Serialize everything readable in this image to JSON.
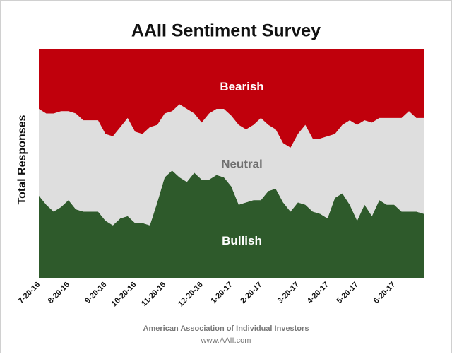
{
  "chart_data": {
    "type": "stacked_area",
    "title": "AAII Sentiment Survey",
    "ylabel": "Total Responses",
    "footer": [
      "American Association of Individual Investors",
      "www.AAII.com"
    ],
    "categories": [
      "7-20-16",
      null,
      null,
      null,
      "8-20-16",
      null,
      null,
      null,
      null,
      "9-20-16",
      null,
      null,
      null,
      "10-20-16",
      null,
      null,
      null,
      "11-20-16",
      null,
      null,
      null,
      null,
      "12-20-16",
      null,
      null,
      null,
      "1-20-17",
      null,
      null,
      null,
      "2-20-17",
      null,
      null,
      null,
      null,
      "3-20-17",
      null,
      null,
      null,
      "4-20-17",
      null,
      null,
      null,
      "5-20-17",
      null,
      null,
      null,
      null,
      "6-20-17",
      null,
      null,
      null,
      null
    ],
    "ylim": [
      0,
      100
    ],
    "series": [
      {
        "name": "Bullish",
        "color": "#2e5a2b",
        "label_color": "#ffffff",
        "values": [
          36,
          32,
          29,
          31,
          34,
          30,
          29,
          29,
          29,
          25,
          23,
          26,
          27,
          24,
          24,
          23,
          33,
          44,
          47,
          44,
          42,
          46,
          43,
          43,
          45,
          44,
          40,
          32,
          33,
          34,
          34,
          38,
          39,
          33,
          29,
          33,
          32,
          29,
          28,
          26,
          35,
          37,
          32,
          25,
          32,
          27,
          34,
          32,
          32,
          29,
          29,
          29,
          28
        ]
      },
      {
        "name": "Neutral",
        "color": "#dedede",
        "label_color": "#707070",
        "values": [
          38,
          40,
          43,
          42,
          39,
          42,
          40,
          40,
          40,
          38,
          39,
          40,
          43,
          40,
          39,
          43,
          34,
          28,
          26,
          32,
          32,
          26,
          25,
          29,
          29,
          30,
          31,
          35,
          32,
          33,
          36,
          29,
          26,
          26,
          28,
          30,
          35,
          32,
          33,
          36,
          28,
          30,
          37,
          42,
          37,
          41,
          36,
          38,
          38,
          41,
          44,
          41,
          42
        ]
      },
      {
        "name": "Bearish",
        "color": "#c0000c",
        "label_color": "#ffffff",
        "values": [
          26,
          28,
          28,
          27,
          27,
          28,
          31,
          31,
          31,
          37,
          38,
          34,
          30,
          36,
          37,
          34,
          33,
          28,
          27,
          24,
          26,
          28,
          32,
          28,
          26,
          26,
          29,
          33,
          35,
          33,
          30,
          33,
          35,
          41,
          43,
          37,
          33,
          39,
          39,
          38,
          37,
          33,
          31,
          33,
          31,
          32,
          30,
          30,
          30,
          30,
          27,
          30,
          30
        ]
      }
    ]
  }
}
